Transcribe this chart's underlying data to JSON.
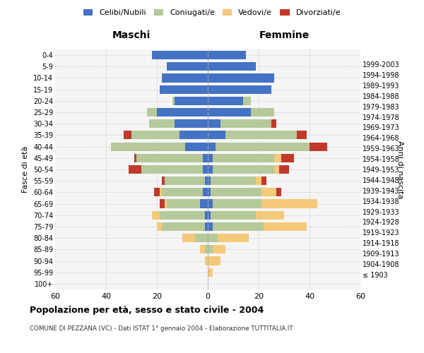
{
  "age_groups": [
    "100+",
    "95-99",
    "90-94",
    "85-89",
    "80-84",
    "75-79",
    "70-74",
    "65-69",
    "60-64",
    "55-59",
    "50-54",
    "45-49",
    "40-44",
    "35-39",
    "30-34",
    "25-29",
    "20-24",
    "15-19",
    "10-14",
    "5-9",
    "0-4"
  ],
  "birth_years": [
    "≤ 1903",
    "1904-1908",
    "1909-1913",
    "1914-1918",
    "1919-1923",
    "1924-1928",
    "1929-1933",
    "1934-1938",
    "1939-1943",
    "1944-1948",
    "1949-1953",
    "1954-1958",
    "1959-1963",
    "1964-1968",
    "1969-1973",
    "1974-1978",
    "1979-1983",
    "1984-1988",
    "1989-1993",
    "1994-1998",
    "1999-2003"
  ],
  "colors": {
    "celibi": "#4472c4",
    "coniugati": "#b5c99a",
    "vedovi": "#f5c97a",
    "divorziati": "#c0392b"
  },
  "maschi": {
    "celibi": [
      0,
      0,
      0,
      0,
      0,
      1,
      1,
      3,
      2,
      1,
      2,
      2,
      9,
      11,
      13,
      20,
      13,
      19,
      18,
      16,
      22
    ],
    "coniugati": [
      0,
      0,
      0,
      1,
      5,
      17,
      18,
      13,
      16,
      16,
      24,
      26,
      29,
      19,
      10,
      4,
      1,
      0,
      0,
      0,
      0
    ],
    "vedovi": [
      0,
      0,
      1,
      2,
      5,
      2,
      3,
      1,
      1,
      0,
      0,
      0,
      0,
      0,
      0,
      0,
      0,
      0,
      0,
      0,
      0
    ],
    "divorziati": [
      0,
      0,
      0,
      0,
      0,
      0,
      0,
      2,
      2,
      1,
      5,
      1,
      0,
      3,
      0,
      0,
      0,
      0,
      0,
      0,
      0
    ]
  },
  "femmine": {
    "nubili": [
      0,
      0,
      0,
      0,
      0,
      2,
      1,
      2,
      1,
      1,
      2,
      2,
      3,
      7,
      5,
      17,
      14,
      25,
      26,
      19,
      15
    ],
    "coniugate": [
      0,
      0,
      0,
      2,
      4,
      20,
      18,
      19,
      20,
      18,
      24,
      24,
      37,
      28,
      20,
      9,
      3,
      0,
      0,
      0,
      0
    ],
    "vedove": [
      0,
      2,
      5,
      5,
      12,
      17,
      11,
      22,
      6,
      2,
      2,
      3,
      0,
      0,
      0,
      0,
      0,
      0,
      0,
      0,
      0
    ],
    "divorziate": [
      0,
      0,
      0,
      0,
      0,
      0,
      0,
      0,
      2,
      2,
      4,
      5,
      7,
      4,
      2,
      0,
      0,
      0,
      0,
      0,
      0
    ]
  },
  "title": "Popolazione per età, sesso e stato civile - 2004",
  "subtitle": "COMUNE DI PEZZANA (VC) - Dati ISTAT 1° gennaio 2004 - Elaborazione TUTTITALIA.IT",
  "xlabel_left": "Maschi",
  "xlabel_right": "Femmine",
  "ylabel_left": "Fasce di età",
  "ylabel_right": "Anni di nascita",
  "xlim": 60,
  "legend_labels": [
    "Celibi/Nubili",
    "Coniugati/e",
    "Vedovi/e",
    "Divorziati/e"
  ],
  "bg_color": "#f5f5f5",
  "grid_color": "#cccccc"
}
